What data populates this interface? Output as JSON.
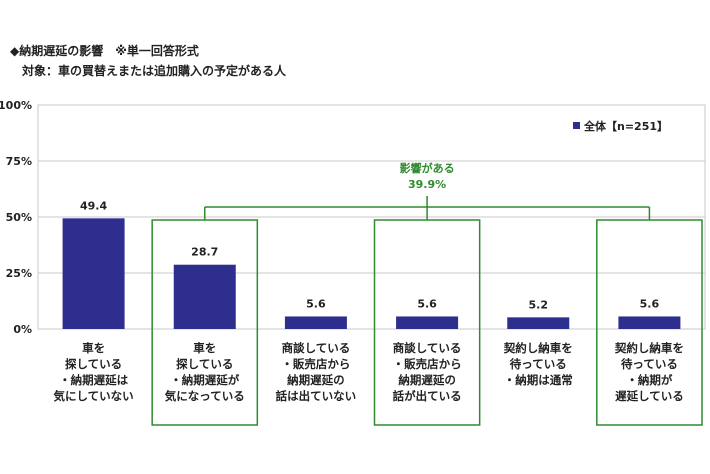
{
  "title": "◆納期遅延の影響　※単一回答形式",
  "subtitle": "対象：車の買替えまたは追加購入の予定がある人",
  "chart_data": {
    "type": "bar",
    "categories": [
      [
        "車を",
        "探している",
        "・納期遅延は",
        "気にしていない"
      ],
      [
        "車を",
        "探している",
        "・納期遅延が",
        "気になっている"
      ],
      [
        "商談している",
        "・販売店から",
        "納期遅延の",
        "話は出ていない"
      ],
      [
        "商談している",
        "・販売店から",
        "納期遅延の",
        "話が出ている"
      ],
      [
        "契約し納車を",
        "待っている",
        "・納期は通常"
      ],
      [
        "契約し納車を",
        "待っている",
        "・納期が",
        "遅延している"
      ]
    ],
    "series": [
      {
        "name": "全体【n=251】",
        "values": [
          49.4,
          28.7,
          5.6,
          5.6,
          5.2,
          5.6
        ]
      }
    ],
    "value_labels": [
      "49.4",
      "28.7",
      "5.6",
      "5.6",
      "5.2",
      "5.6"
    ],
    "ylim": [
      0,
      100
    ],
    "yticks": [
      "0%",
      "25%",
      "50%",
      "75%",
      "100%"
    ],
    "legend_position": "top-right",
    "highlighted_categories": [
      1,
      3,
      5
    ],
    "annotation": {
      "label": "影響がある",
      "value": "39.9%"
    },
    "colors": {
      "bar": "#2e2e8f",
      "highlight": "#2e8b2e",
      "grid": "#c8c8c8"
    }
  }
}
